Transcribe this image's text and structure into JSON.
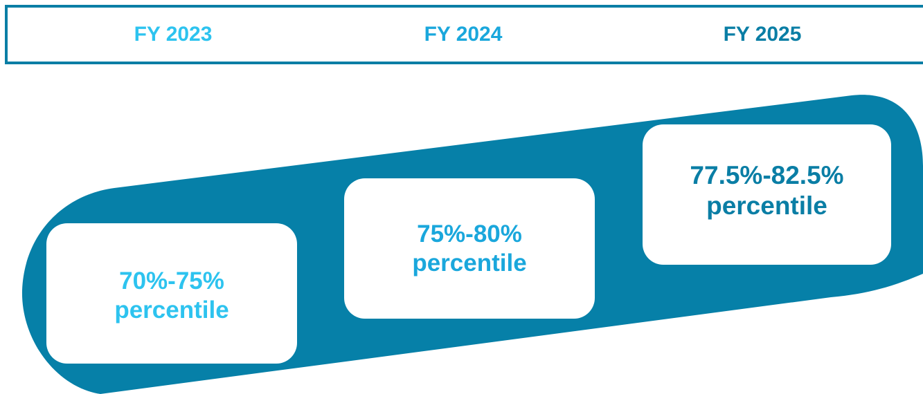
{
  "colors": {
    "band": "#0680a8",
    "border": "#0a7ea5",
    "light_blue": "#2dc3ef",
    "mid_blue": "#1aa7dc",
    "dark_blue": "#0a7ea5"
  },
  "header": {
    "years": [
      {
        "label": "FY 2023"
      },
      {
        "label": "FY 2024"
      },
      {
        "label": "FY 2025"
      }
    ]
  },
  "cards": [
    {
      "range": "70%-75%",
      "unit": "percentile"
    },
    {
      "range": "75%-80%",
      "unit": "percentile"
    },
    {
      "range": "77.5%-82.5%",
      "unit": "percentile"
    }
  ]
}
